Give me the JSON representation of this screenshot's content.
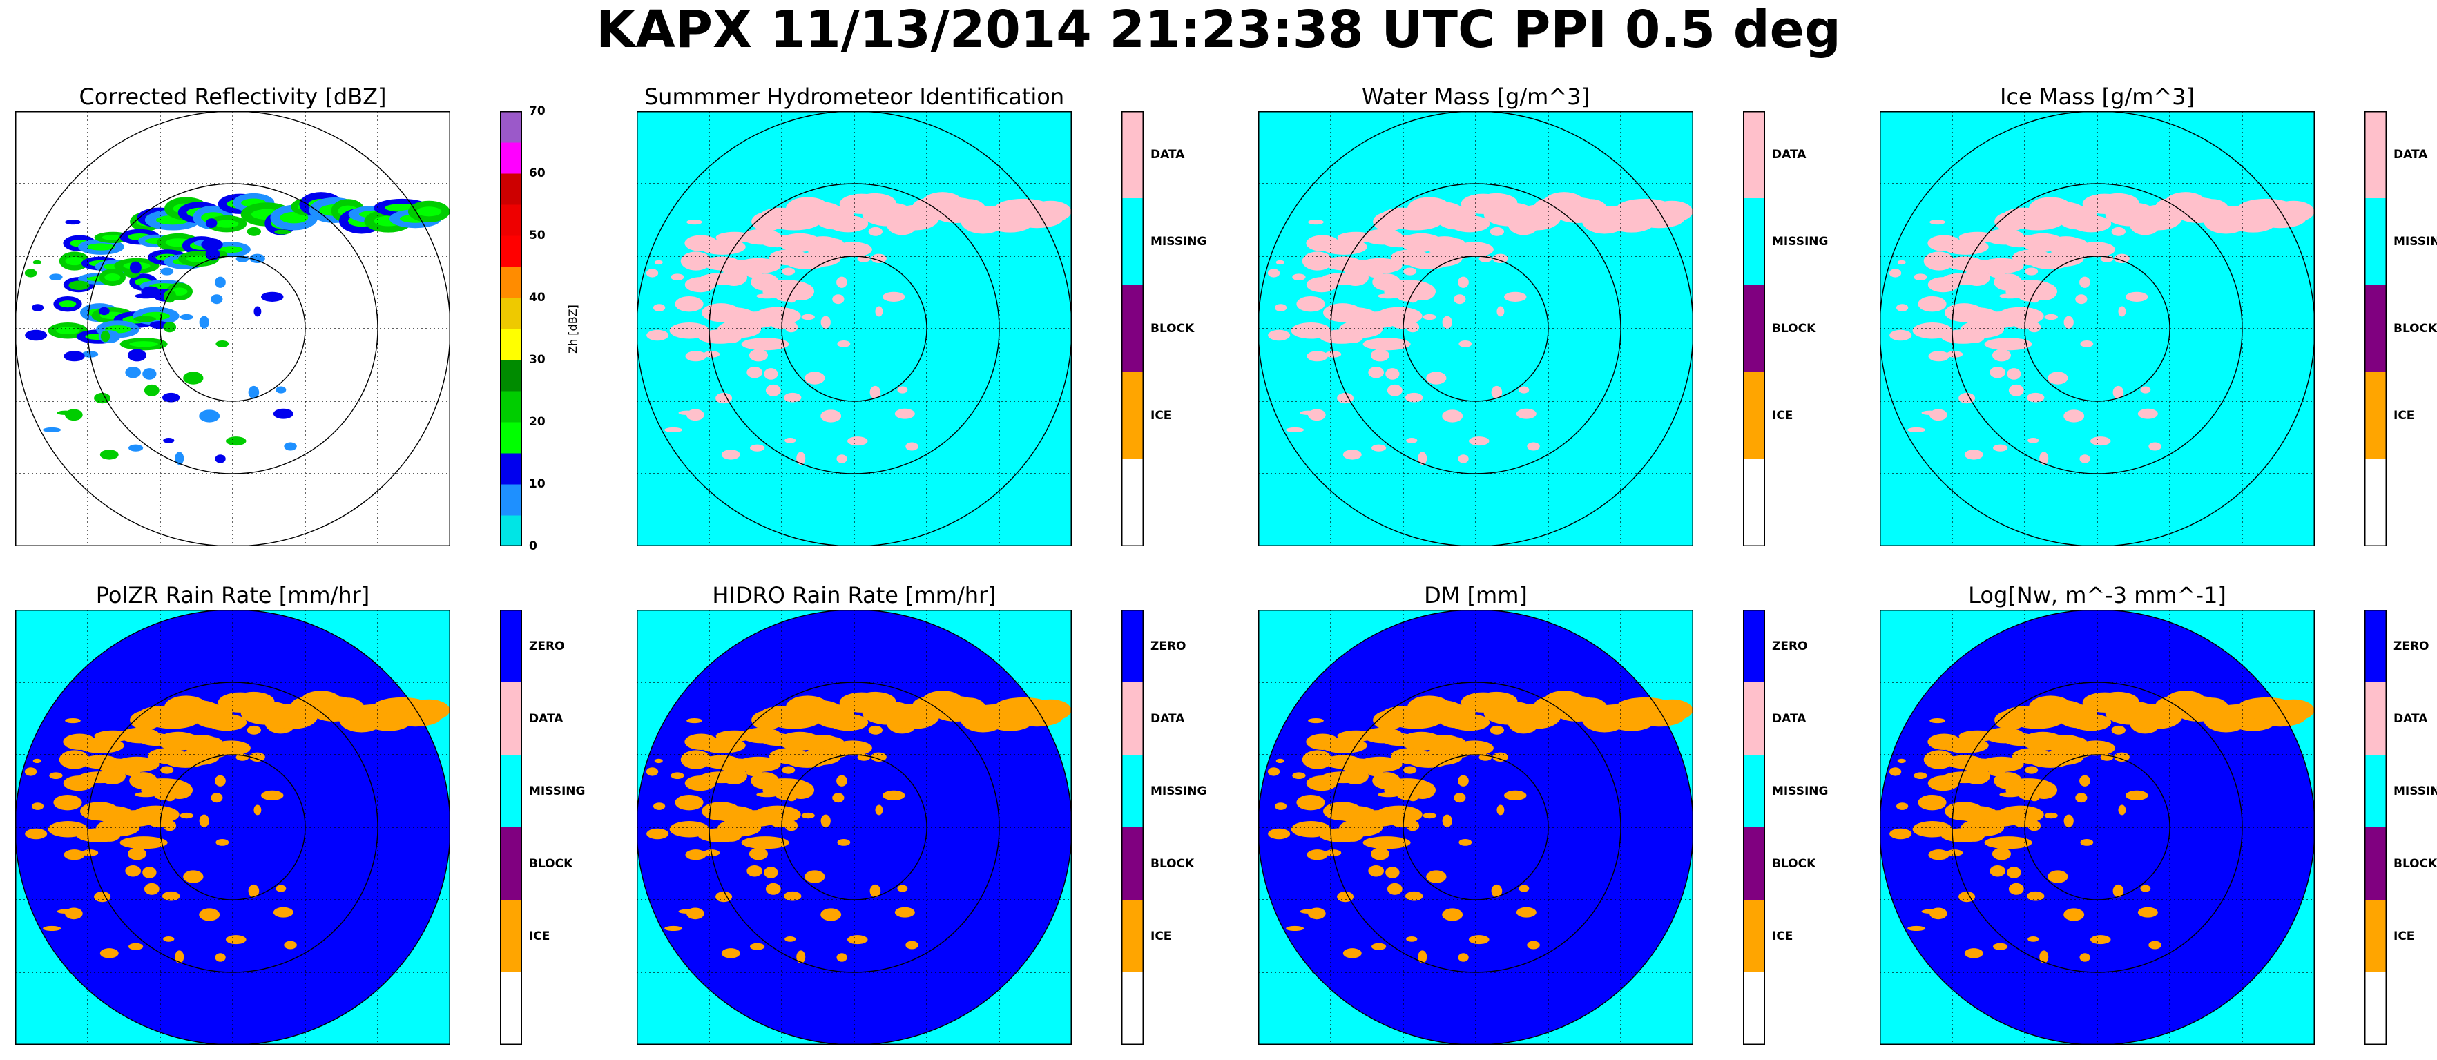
{
  "suptitle": "KAPX 11/13/2014 21:23:38 UTC PPI 0.5 deg",
  "colors": {
    "dbz_scale": [
      "#00e5e5",
      "#1e90ff",
      "#0000ee",
      "#00ff00",
      "#00cd00",
      "#008b00",
      "#ffff00",
      "#eec900",
      "#ff8c00",
      "#ff0000",
      "#ee0000",
      "#cd0000",
      "#ff00ff",
      "#9b59c9"
    ],
    "category_zero": "#0000ff",
    "category_data": "#ffc0cb",
    "category_missing": "#00ffff",
    "category_block": "#800080",
    "category_ice": "#ffa500",
    "category_empty": "#ffffff"
  },
  "chart_data": [
    {
      "type": "heatmap",
      "title": "Corrected Reflectivity [dBZ]",
      "colorbar_label": "Zh [dBZ]",
      "colorbar_ticks": [
        "70",
        "60",
        "50",
        "40",
        "30",
        "20",
        "10",
        "0"
      ],
      "colorbar_range": [
        0,
        70
      ],
      "grid": true,
      "range_rings": 3,
      "field": "reflectivity"
    },
    {
      "type": "heatmap",
      "title": "Summmer Hydrometeor Identification",
      "colorbar_categories": [
        "DATA",
        "MISSING",
        "BLOCK",
        "ICE",
        ""
      ],
      "grid": true,
      "range_rings": 3,
      "background": "MISSING",
      "echo": "DATA"
    },
    {
      "type": "heatmap",
      "title": "Water Mass [g/m^3]",
      "colorbar_categories": [
        "DATA",
        "MISSING",
        "BLOCK",
        "ICE",
        ""
      ],
      "grid": true,
      "range_rings": 3,
      "background": "MISSING",
      "echo": "DATA"
    },
    {
      "type": "heatmap",
      "title": "Ice Mass [g/m^3]",
      "colorbar_categories": [
        "DATA",
        "MISSING",
        "BLOCK",
        "ICE",
        ""
      ],
      "grid": true,
      "range_rings": 3,
      "background": "MISSING",
      "echo": "DATA"
    },
    {
      "type": "heatmap",
      "title": "PolZR Rain Rate [mm/hr]",
      "colorbar_categories": [
        "ZERO",
        "DATA",
        "MISSING",
        "BLOCK",
        "ICE",
        ""
      ],
      "grid": true,
      "range_rings": 3,
      "background": "MISSING",
      "disk": "ZERO",
      "echo": "ICE"
    },
    {
      "type": "heatmap",
      "title": "HIDRO Rain Rate [mm/hr]",
      "colorbar_categories": [
        "ZERO",
        "DATA",
        "MISSING",
        "BLOCK",
        "ICE",
        ""
      ],
      "grid": true,
      "range_rings": 3,
      "background": "MISSING",
      "disk": "ZERO",
      "echo": "ICE"
    },
    {
      "type": "heatmap",
      "title": "DM [mm]",
      "colorbar_categories": [
        "ZERO",
        "DATA",
        "MISSING",
        "BLOCK",
        "ICE",
        ""
      ],
      "grid": true,
      "range_rings": 3,
      "background": "MISSING",
      "disk": "ZERO",
      "echo": "ICE"
    },
    {
      "type": "heatmap",
      "title": "Log[Nw, m^-3 mm^-1]",
      "colorbar_categories": [
        "ZERO",
        "DATA",
        "MISSING",
        "BLOCK",
        "ICE",
        ""
      ],
      "grid": true,
      "range_rings": 3,
      "background": "MISSING",
      "disk": "ZERO",
      "echo": "ICE"
    }
  ]
}
